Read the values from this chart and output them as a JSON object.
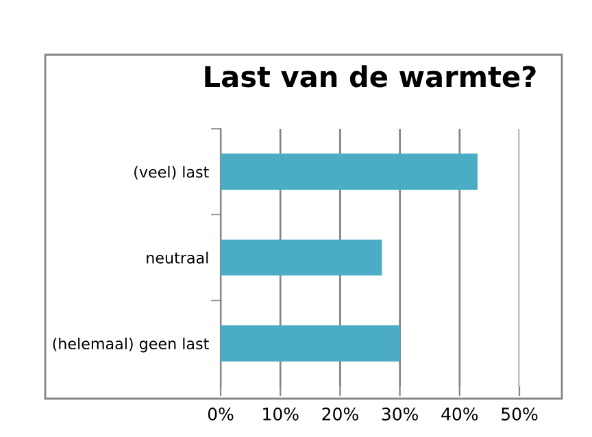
{
  "chart_data": {
    "type": "bar",
    "orientation": "horizontal",
    "title": "Last van de warmte?",
    "categories": [
      "(veel) last",
      "neutraal",
      "(helemaal) geen last"
    ],
    "values": [
      43,
      27,
      30
    ],
    "color": "#4bacc6",
    "xlim": [
      0,
      50
    ],
    "xticks": [
      {
        "value": 0,
        "label": "0%"
      },
      {
        "value": 10,
        "label": "10%"
      },
      {
        "value": 20,
        "label": "20%"
      },
      {
        "value": 30,
        "label": "30%"
      },
      {
        "value": 40,
        "label": "40%"
      },
      {
        "value": 50,
        "label": "50%"
      }
    ],
    "grid": "x",
    "legend": false
  }
}
